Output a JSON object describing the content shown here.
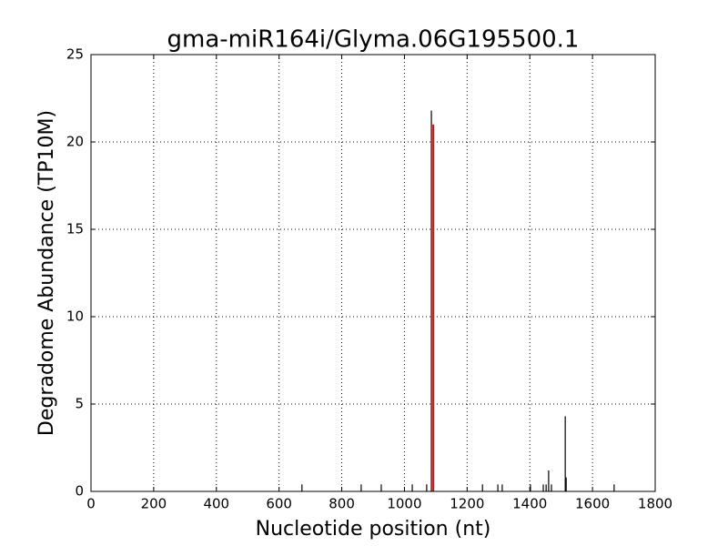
{
  "chart_data": {
    "type": "stem",
    "title": "gma-miR164i/Glyma.06G195500.1",
    "x_label": "Nucleotide position (nt)",
    "y_label": "Degradome Abundance (TP10M)",
    "xlim": [
      0,
      1800
    ],
    "xticks": [
      0,
      200,
      400,
      600,
      800,
      1000,
      1200,
      1400,
      1600,
      1800
    ],
    "ylim": [
      0,
      25
    ],
    "yticks": [
      0,
      5,
      10,
      15,
      20,
      25
    ],
    "grid": true,
    "series": [
      {
        "color": "#000000",
        "x": [
          673,
          862,
          926,
          1025,
          1071,
          1086,
          1249,
          1298,
          1312,
          1402,
          1443,
          1452,
          1460,
          1469,
          1513,
          1516,
          1669
        ],
        "values": [
          0.4,
          0.4,
          0.4,
          0.4,
          0.4,
          21.8,
          0.4,
          0.4,
          0.4,
          0.4,
          0.4,
          0.4,
          1.2,
          0.4,
          4.3,
          0.8,
          0.4
        ]
      },
      {
        "color": "#ff0000",
        "x": [
          1092
        ],
        "values": [
          21.0
        ]
      }
    ]
  }
}
